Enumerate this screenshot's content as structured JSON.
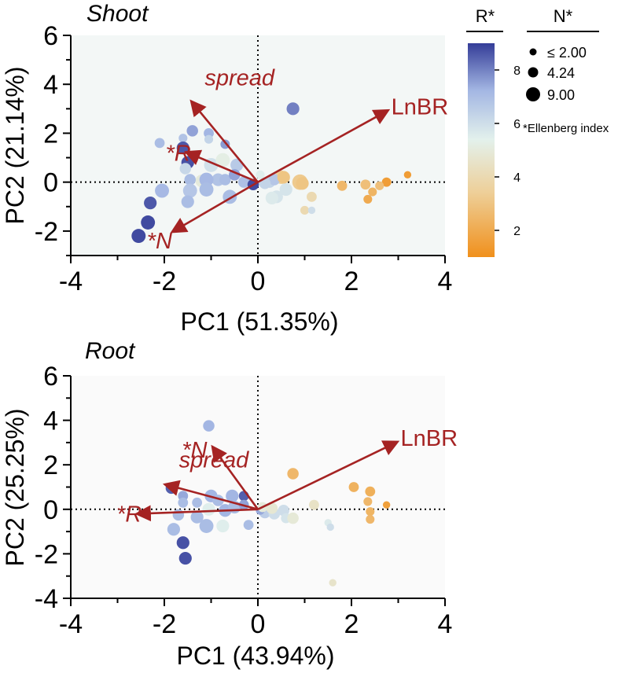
{
  "chart_data": [
    {
      "type": "scatter",
      "panel": "shoot",
      "title": "Shoot",
      "xlabel": "PC1 (51.35%)",
      "ylabel": "PC2 (21.14%)",
      "xlim": [
        -4,
        4
      ],
      "ylim": [
        -3,
        6
      ],
      "xticks": [
        "-4",
        "-2",
        "0",
        "2",
        "4"
      ],
      "yticks": [
        "-2",
        "0",
        "2",
        "4",
        "6"
      ],
      "background": "#f3f7f6",
      "arrows": [
        {
          "label": "spread",
          "italic": true,
          "x": -1.4,
          "y": 3.25
        },
        {
          "label": "LnBR",
          "italic": false,
          "x": 2.75,
          "y": 2.9
        },
        {
          "label": "*R",
          "italic": true,
          "x": -1.5,
          "y": 1.2
        },
        {
          "label": "*N",
          "italic": true,
          "x": -1.8,
          "y": -2.0
        }
      ],
      "points": [
        {
          "x": 0.75,
          "y": 3.0,
          "r": 8,
          "n": 6
        },
        {
          "x": -1.4,
          "y": 2.1,
          "r": 7.5,
          "n": 5
        },
        {
          "x": -1.05,
          "y": 2.0,
          "r": 7.2,
          "n": 4
        },
        {
          "x": -2.1,
          "y": 1.6,
          "r": 7,
          "n": 4
        },
        {
          "x": -1.6,
          "y": 1.8,
          "r": 6.8,
          "n": 3
        },
        {
          "x": -1.05,
          "y": 1.75,
          "r": 6.3,
          "n": 3
        },
        {
          "x": -0.7,
          "y": 1.55,
          "r": 7.6,
          "n": 3.5
        },
        {
          "x": -1.6,
          "y": 1.4,
          "r": 8.6,
          "n": 6
        },
        {
          "x": -1.5,
          "y": 0.8,
          "r": 8.7,
          "n": 6
        },
        {
          "x": -1.0,
          "y": 0.7,
          "r": 5.9,
          "n": 7
        },
        {
          "x": -0.75,
          "y": 0.9,
          "r": 5.2,
          "n": 7
        },
        {
          "x": -0.45,
          "y": 0.7,
          "r": 6.6,
          "n": 6
        },
        {
          "x": -1.55,
          "y": 0.55,
          "r": 6.2,
          "n": 5
        },
        {
          "x": -1.2,
          "y": 0.05,
          "r": 5.0,
          "n": 6
        },
        {
          "x": -1.45,
          "y": 0.1,
          "r": 7.0,
          "n": 5
        },
        {
          "x": -0.85,
          "y": 0.1,
          "r": 6.8,
          "n": 6
        },
        {
          "x": -0.7,
          "y": 0.1,
          "r": 7.0,
          "n": 5
        },
        {
          "x": -0.5,
          "y": 0.3,
          "r": 7.5,
          "n": 5
        },
        {
          "x": -0.3,
          "y": 0.0,
          "r": 6.9,
          "n": 5
        },
        {
          "x": -1.1,
          "y": 0.1,
          "r": 7.1,
          "n": 7
        },
        {
          "x": -2.05,
          "y": -0.35,
          "r": 7.1,
          "n": 7
        },
        {
          "x": -1.45,
          "y": -0.35,
          "r": 6.7,
          "n": 7
        },
        {
          "x": -1.1,
          "y": -0.3,
          "r": 7.0,
          "n": 7
        },
        {
          "x": -0.6,
          "y": -0.6,
          "r": 7.0,
          "n": 7
        },
        {
          "x": -1.5,
          "y": -0.8,
          "r": 7.0,
          "n": 6
        },
        {
          "x": -2.3,
          "y": -0.85,
          "r": 8.6,
          "n": 6
        },
        {
          "x": -2.35,
          "y": -1.65,
          "r": 8.8,
          "n": 7
        },
        {
          "x": -2.55,
          "y": -2.2,
          "r": 8.8,
          "n": 7
        },
        {
          "x": -0.1,
          "y": -0.1,
          "r": 8.8,
          "n": 5
        },
        {
          "x": 0.5,
          "y": 0.2,
          "r": 3.5,
          "n": 6.5
        },
        {
          "x": 0.9,
          "y": 0.0,
          "r": 3.2,
          "n": 8
        },
        {
          "x": 0.6,
          "y": -0.3,
          "r": 5.8,
          "n": 6
        },
        {
          "x": 0.4,
          "y": -0.6,
          "r": 5.8,
          "n": 6
        },
        {
          "x": 0.3,
          "y": -0.65,
          "r": 5.6,
          "n": 6
        },
        {
          "x": 1.15,
          "y": -0.6,
          "r": 4.0,
          "n": 4
        },
        {
          "x": 1.0,
          "y": -1.15,
          "r": 4.0,
          "n": 3
        },
        {
          "x": 1.15,
          "y": -1.15,
          "r": 6.0,
          "n": 2
        },
        {
          "x": 0.05,
          "y": 0.3,
          "r": 5.5,
          "n": 3
        },
        {
          "x": 0.25,
          "y": 0.0,
          "r": 6.3,
          "n": 5
        },
        {
          "x": 0.35,
          "y": 0.1,
          "r": 6.7,
          "n": 5
        },
        {
          "x": 0.15,
          "y": -0.05,
          "r": 6.3,
          "n": 5
        },
        {
          "x": 0.55,
          "y": 0.2,
          "r": 3.0,
          "n": 6
        },
        {
          "x": 0.95,
          "y": -0.05,
          "r": 3.0,
          "n": 6
        },
        {
          "x": 1.8,
          "y": -0.15,
          "r": 2.5,
          "n": 4
        },
        {
          "x": 2.3,
          "y": -0.1,
          "r": 2.8,
          "n": 4
        },
        {
          "x": 2.35,
          "y": -0.7,
          "r": 2.0,
          "n": 3
        },
        {
          "x": 2.45,
          "y": -0.4,
          "r": 2.4,
          "n": 3
        },
        {
          "x": 2.75,
          "y": 0.0,
          "r": 1.5,
          "n": 3.5
        },
        {
          "x": 3.2,
          "y": 0.3,
          "r": 1.5,
          "n": 2
        },
        {
          "x": 2.6,
          "y": -0.15,
          "r": 2.8,
          "n": 3
        }
      ]
    },
    {
      "type": "scatter",
      "panel": "root",
      "title": "Root",
      "xlabel": "PC1 (43.94%)",
      "ylabel": "PC2 (25.25%)",
      "xlim": [
        -4,
        4
      ],
      "ylim": [
        -4,
        6
      ],
      "xticks": [
        "-4",
        "-2",
        "0",
        "2",
        "4"
      ],
      "yticks": [
        "-4",
        "-2",
        "0",
        "2",
        "4",
        "6"
      ],
      "background": "#fafafa",
      "arrows": [
        {
          "label": "*N",
          "italic": true,
          "x": -0.95,
          "y": 2.75
        },
        {
          "label": "LnBR",
          "italic": false,
          "x": 2.95,
          "y": 3.0
        },
        {
          "label": "spread",
          "italic": true,
          "x": -1.95,
          "y": 1.1
        },
        {
          "label": "*R",
          "italic": true,
          "x": -2.55,
          "y": -0.2
        }
      ],
      "points": [
        {
          "x": -1.05,
          "y": 3.75,
          "r": 7.2,
          "n": 5
        },
        {
          "x": -1.85,
          "y": 0.95,
          "r": 8.5,
          "n": 5
        },
        {
          "x": -1.6,
          "y": 0.6,
          "r": 7.4,
          "n": 4
        },
        {
          "x": -1.3,
          "y": 0.3,
          "r": 7.0,
          "n": 4
        },
        {
          "x": -1.0,
          "y": 0.6,
          "r": 7.2,
          "n": 6
        },
        {
          "x": -0.85,
          "y": 0.4,
          "r": 7.0,
          "n": 5
        },
        {
          "x": -0.55,
          "y": 0.6,
          "r": 7.2,
          "n": 6
        },
        {
          "x": -0.3,
          "y": 0.6,
          "r": 8.5,
          "n": 4
        },
        {
          "x": -1.6,
          "y": 0.3,
          "r": 7.0,
          "n": 4
        },
        {
          "x": -1.05,
          "y": 0.0,
          "r": 5.5,
          "n": 6
        },
        {
          "x": -0.7,
          "y": -0.05,
          "r": 7.2,
          "n": 6
        },
        {
          "x": -0.5,
          "y": 0.1,
          "r": 7.0,
          "n": 6
        },
        {
          "x": -0.3,
          "y": 0.2,
          "r": 7.5,
          "n": 4
        },
        {
          "x": -1.7,
          "y": -0.25,
          "r": 7.0,
          "n": 5
        },
        {
          "x": -1.3,
          "y": -0.35,
          "r": 7.0,
          "n": 6
        },
        {
          "x": -0.75,
          "y": -0.75,
          "r": 5.5,
          "n": 6
        },
        {
          "x": -1.1,
          "y": -0.75,
          "r": 7.0,
          "n": 7
        },
        {
          "x": -1.8,
          "y": -0.9,
          "r": 7.0,
          "n": 6
        },
        {
          "x": -1.6,
          "y": -1.5,
          "r": 8.7,
          "n": 6
        },
        {
          "x": -1.55,
          "y": -2.2,
          "r": 8.7,
          "n": 6
        },
        {
          "x": -0.2,
          "y": -0.7,
          "r": 7.0,
          "n": 4
        },
        {
          "x": 0.15,
          "y": -0.15,
          "r": 6.5,
          "n": 5
        },
        {
          "x": 0.35,
          "y": -0.2,
          "r": 6.0,
          "n": 5
        },
        {
          "x": 0.05,
          "y": -0.05,
          "r": 7.4,
          "n": 3
        },
        {
          "x": 0.1,
          "y": 0.1,
          "r": 5.0,
          "n": 4
        },
        {
          "x": 0.3,
          "y": 0.05,
          "r": 4.8,
          "n": 5
        },
        {
          "x": 0.55,
          "y": -0.05,
          "r": 6.0,
          "n": 5
        },
        {
          "x": 0.6,
          "y": -0.4,
          "r": 5.8,
          "n": 4
        },
        {
          "x": 0.75,
          "y": -0.4,
          "r": 4.9,
          "n": 5
        },
        {
          "x": 0.75,
          "y": 1.6,
          "r": 2.5,
          "n": 5
        },
        {
          "x": 1.2,
          "y": 0.2,
          "r": 4.5,
          "n": 4
        },
        {
          "x": 1.5,
          "y": -0.6,
          "r": 5.6,
          "n": 2
        },
        {
          "x": 1.55,
          "y": -0.8,
          "r": 6.0,
          "n": 2
        },
        {
          "x": 1.6,
          "y": -3.3,
          "r": 4.6,
          "n": 2
        },
        {
          "x": 2.05,
          "y": 1.0,
          "r": 2.3,
          "n": 4
        },
        {
          "x": 2.35,
          "y": 0.35,
          "r": 2.5,
          "n": 3
        },
        {
          "x": 2.4,
          "y": 0.8,
          "r": 2.2,
          "n": 4
        },
        {
          "x": 2.4,
          "y": -0.1,
          "r": 2.4,
          "n": 3
        },
        {
          "x": 2.4,
          "y": -0.45,
          "r": 2.5,
          "n": 3
        },
        {
          "x": 2.75,
          "y": 0.2,
          "r": 1.6,
          "n": 2
        }
      ]
    }
  ],
  "legend": {
    "color_title": "R*",
    "color_ticks": [
      "8",
      "6",
      "4",
      "2"
    ],
    "color_range": [
      1,
      9
    ],
    "size_title": "N*",
    "size_items": [
      {
        "label": "≤ 2.00",
        "value": 2.0
      },
      {
        "label": "4.24",
        "value": 4.24
      },
      {
        "label": "9.00",
        "value": 9.0
      }
    ],
    "note": "*Ellenberg index"
  },
  "colors": {
    "low": "#f0901c",
    "lowmid": "#eecf98",
    "mid": "#e3f1ec",
    "highmid": "#a3b6e3",
    "high": "#343d98",
    "arrow": "#a52323",
    "axis": "#000000"
  }
}
